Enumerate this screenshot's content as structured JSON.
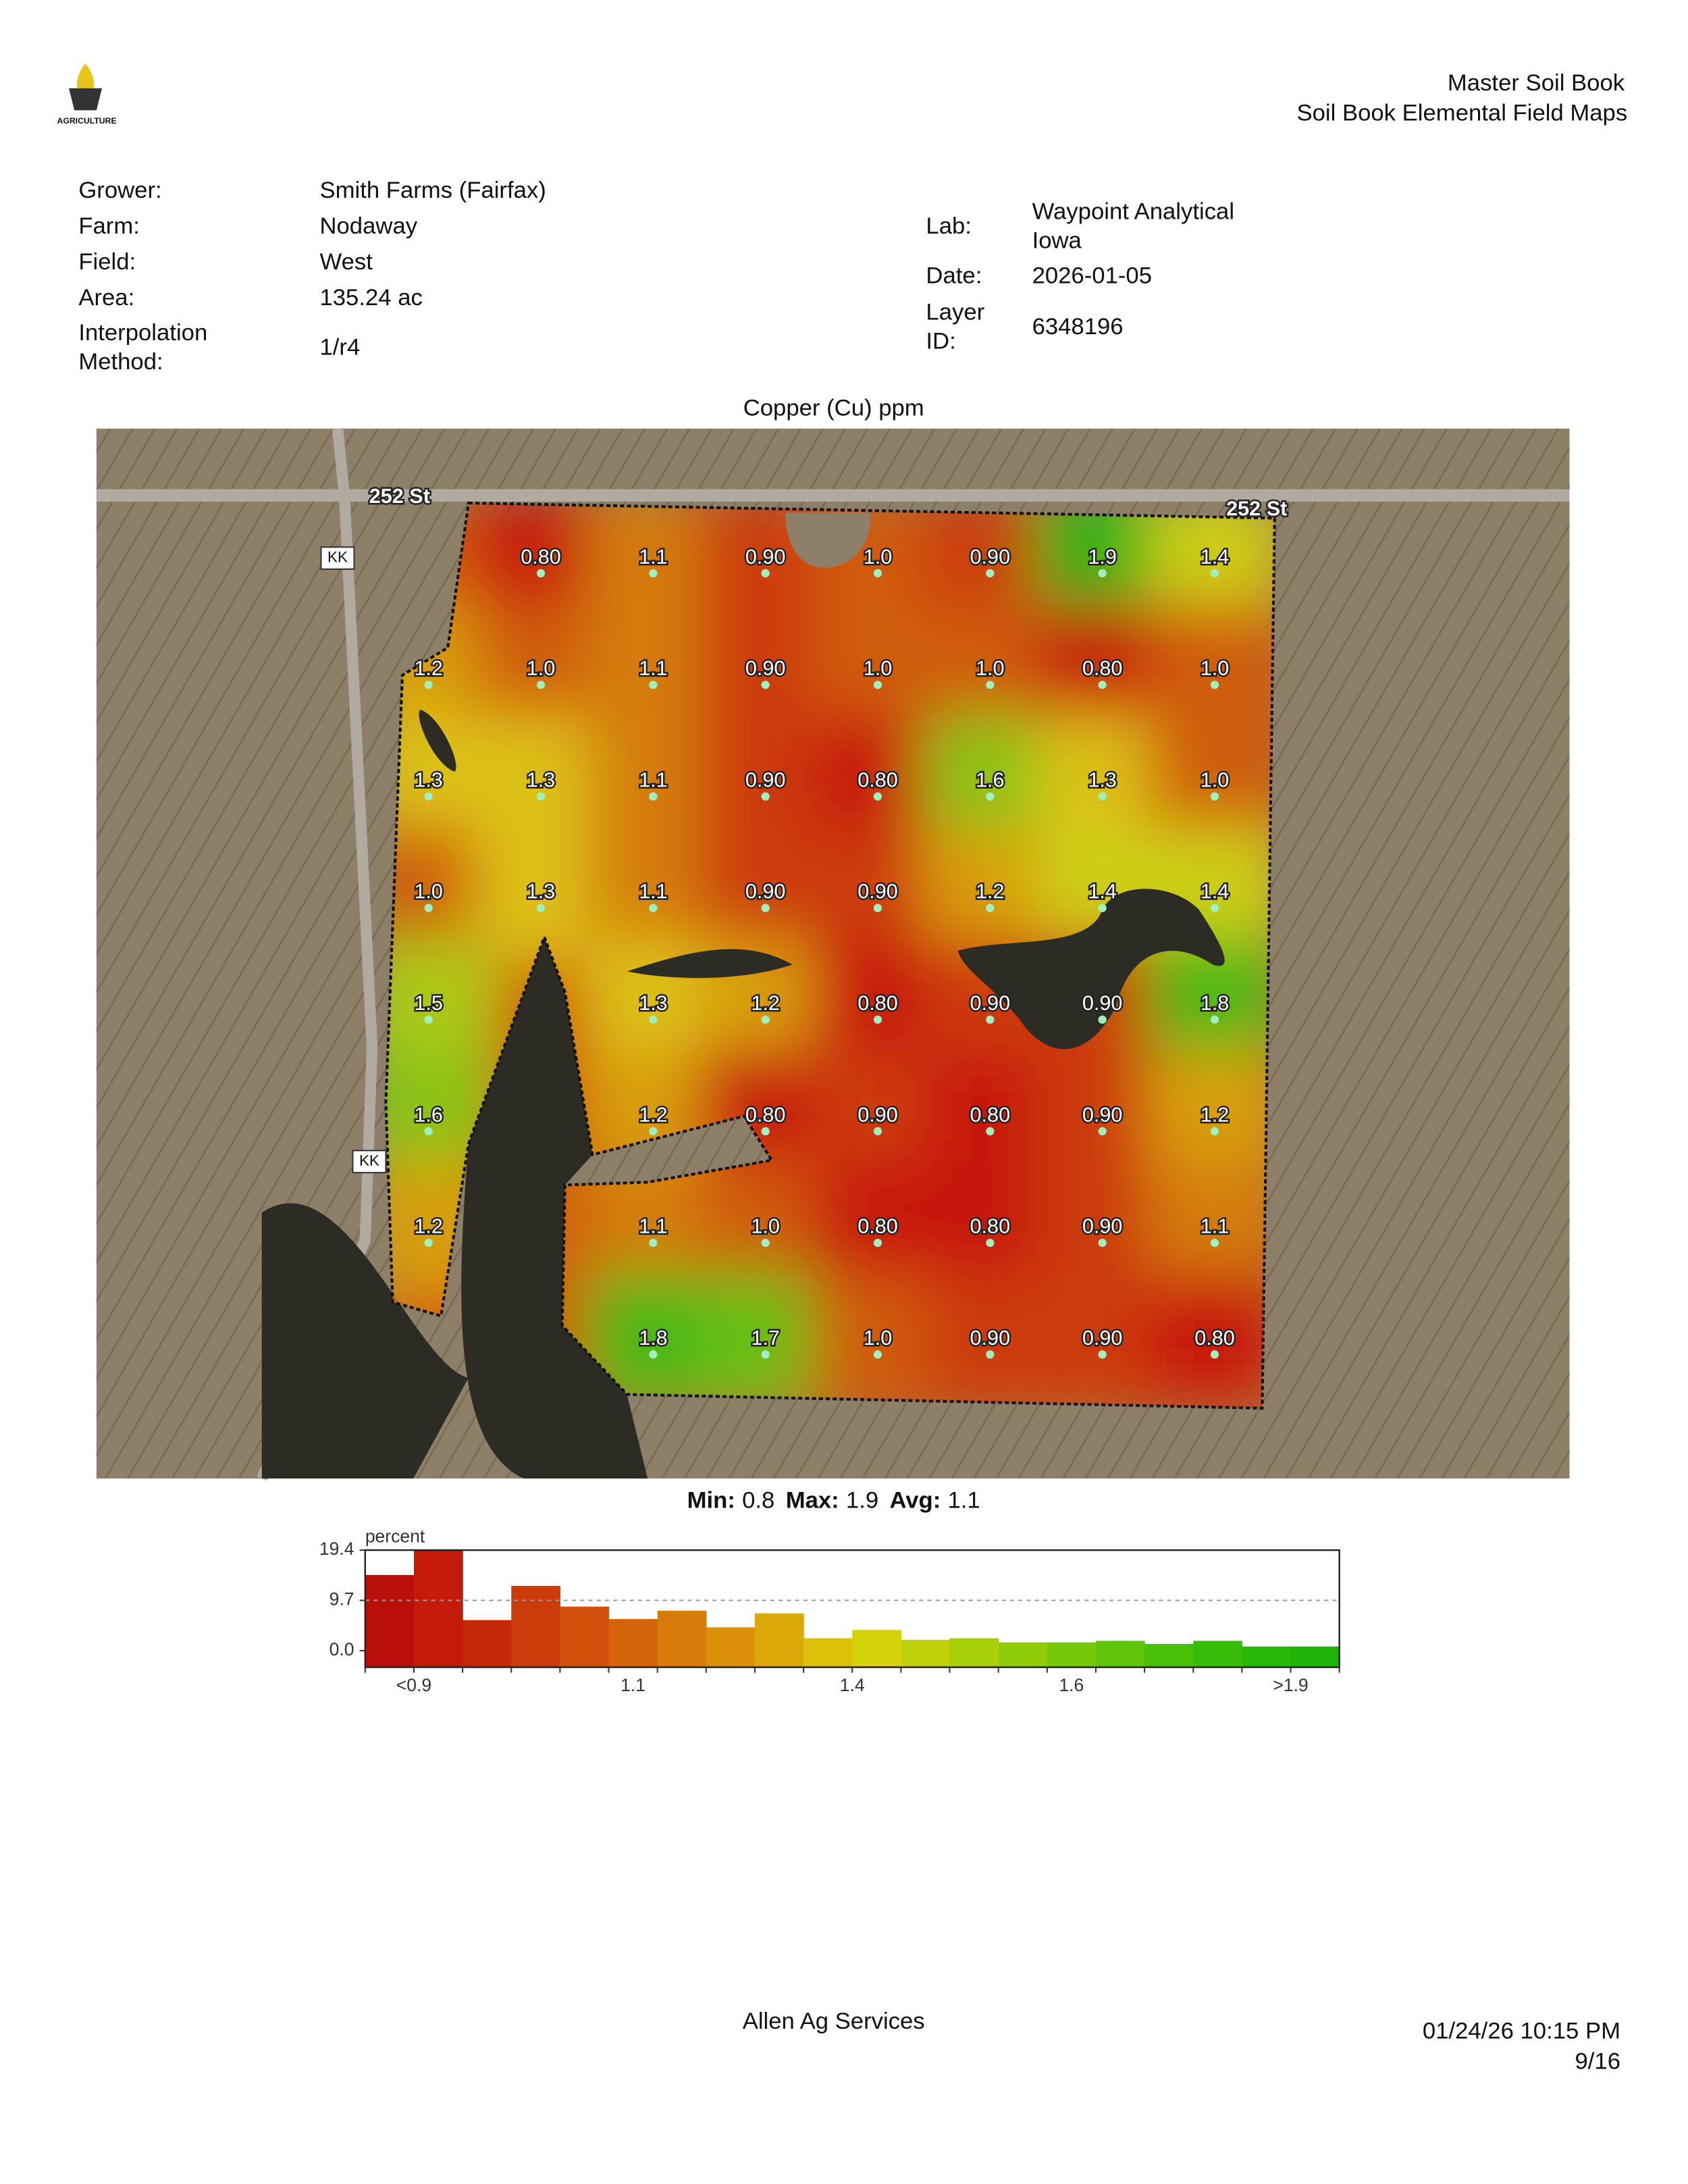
{
  "header": {
    "logo_text": "AGRICULTURE",
    "title": "Master Soil Book",
    "subtitle": "Soil Book Elemental Field Maps"
  },
  "info_left": [
    {
      "label_lines": [
        "Grower:"
      ],
      "value_lines": [
        "Smith Farms (Fairfax)"
      ]
    },
    {
      "label_lines": [
        "Farm:"
      ],
      "value_lines": [
        "Nodaway"
      ]
    },
    {
      "label_lines": [
        "Field:"
      ],
      "value_lines": [
        "West"
      ]
    },
    {
      "label_lines": [
        "Area:"
      ],
      "value_lines": [
        "135.24 ac"
      ]
    },
    {
      "label_lines": [
        "Interpolation",
        "Method:"
      ],
      "value_lines": [
        "1/r4"
      ]
    }
  ],
  "info_right": [
    {
      "label_lines": [
        "Lab:"
      ],
      "value_lines": [
        "Waypoint Analytical",
        "Iowa"
      ]
    },
    {
      "label_lines": [
        "Date:"
      ],
      "value_lines": [
        "2026-01-05"
      ]
    },
    {
      "label_lines": [
        "Layer",
        "ID:"
      ],
      "value_lines": [
        "6348196"
      ]
    }
  ],
  "map": {
    "title": "Copper (Cu) ppm",
    "road_labels": [
      "252 St",
      "252 St",
      "KK",
      "KK"
    ],
    "grid": [
      [
        null,
        "0.80",
        "1.1",
        "0.90",
        "1.0",
        "0.90",
        "1.9",
        "1.4"
      ],
      [
        "1.2",
        "1.0",
        "1.1",
        "0.90",
        "1.0",
        "1.0",
        "0.80",
        "1.0"
      ],
      [
        "1.3",
        "1.3",
        "1.1",
        "0.90",
        "0.80",
        "1.6",
        "1.3",
        "1.0"
      ],
      [
        "1.0",
        "1.3",
        "1.1",
        "0.90",
        "0.90",
        "1.2",
        "1.4",
        "1.4"
      ],
      [
        "1.5",
        null,
        "1.3",
        "1.2",
        "0.80",
        "0.90",
        "0.90",
        "1.8"
      ],
      [
        "1.6",
        null,
        "1.2",
        "0.80",
        "0.90",
        "0.80",
        "0.90",
        "1.2"
      ],
      [
        "1.2",
        null,
        "1.1",
        "1.0",
        "0.80",
        "0.80",
        "0.90",
        "1.1"
      ],
      [
        null,
        null,
        "1.8",
        "1.7",
        "1.0",
        "0.90",
        "0.90",
        "0.80"
      ]
    ]
  },
  "stats": [
    {
      "label": "Min:",
      "value": 0.8
    },
    {
      "label": "Max:",
      "value": 1.9
    },
    {
      "label": "Avg:",
      "value": 1.1
    }
  ],
  "histogram": {
    "type": "bar",
    "y_label": "percent",
    "x_labels": [
      "<0.9",
      "1.1",
      "1.4",
      "1.6",
      ">1.9"
    ],
    "values": [
      14.6,
      19.4,
      5.9,
      12.5,
      8.5,
      6.1,
      7.7,
      4.5,
      7.2,
      2.4,
      4.0,
      2.1,
      2.4,
      1.6,
      1.6,
      1.9,
      1.3,
      1.9,
      0.8,
      0.8
    ],
    "colors": [
      "#b80f0a",
      "#c41a0a",
      "#c8280a",
      "#cc3c0a",
      "#d0500a",
      "#d4640a",
      "#d87a0a",
      "#dc900a",
      "#dca80a",
      "#dcc00a",
      "#d4d00a",
      "#c0d00a",
      "#a8d00a",
      "#90cc0a",
      "#78c80a",
      "#60c40a",
      "#48c00a",
      "#38bc0a",
      "#28b80a",
      "#20b40a"
    ],
    "ylim": [
      -3.2,
      19.4
    ],
    "yticks": [
      {
        "value": 0,
        "label": "0.0"
      },
      9.7,
      19.4
    ],
    "grid": true
  },
  "footer": {
    "company": "Allen Ag Services",
    "timestamp": "01/24/26 10:15 PM",
    "page": "9/16"
  }
}
